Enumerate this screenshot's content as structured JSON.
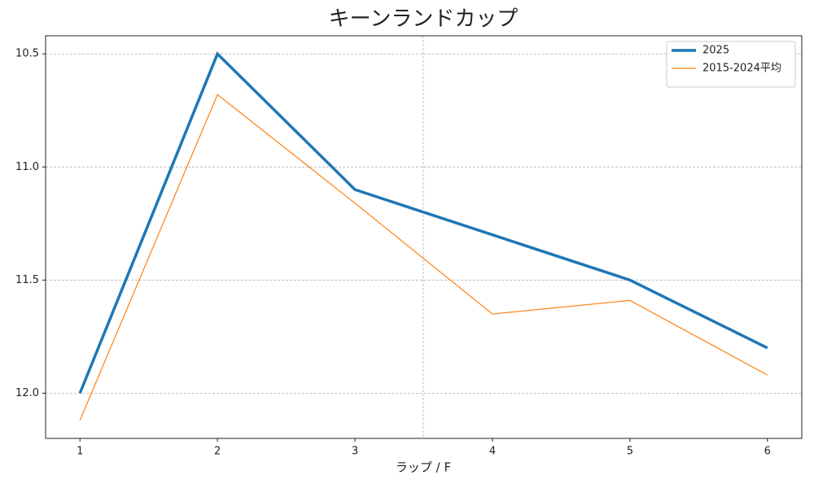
{
  "chart_data": {
    "type": "line",
    "title": "キーンランドカップ",
    "x_label": "ラップ / F",
    "x": [
      1,
      2,
      3,
      4,
      5,
      6
    ],
    "xlim": [
      0.75,
      6.25
    ],
    "xticks": [
      1,
      2,
      3,
      4,
      5,
      6
    ],
    "ylim": [
      12.2,
      10.42
    ],
    "yticks": [
      {
        "value": 10.5,
        "label": "10.5"
      },
      {
        "value": 11,
        "label": "11.0"
      },
      {
        "value": 11.5,
        "label": "11.5"
      },
      {
        "value": 12,
        "label": "12.0"
      }
    ],
    "grid": true,
    "legend": "upper right",
    "series": [
      {
        "name": "2025",
        "color": "#1f77b4",
        "values": [
          12.0,
          10.5,
          11.1,
          11.3,
          11.5,
          11.8
        ]
      },
      {
        "name": "2015-2024平均",
        "color": "#ff7f0e",
        "values": [
          12.12,
          10.68,
          11.16,
          11.65,
          11.59,
          11.92
        ]
      }
    ]
  }
}
